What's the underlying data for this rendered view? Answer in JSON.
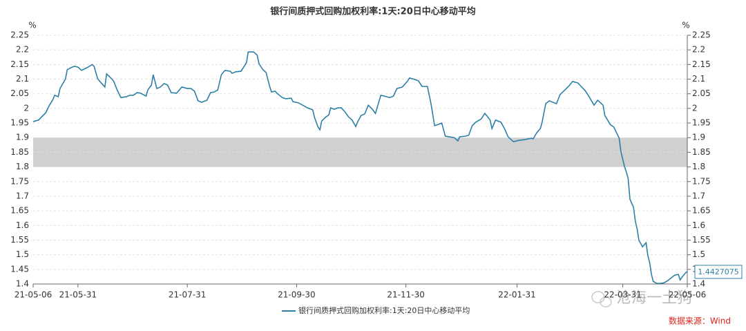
{
  "chart_data": {
    "type": "line",
    "title": "银行间质押式回购加权利率:1天:20日中心移动平均",
    "ylabel": "%",
    "y2label": "%",
    "x": [
      "21-05-06",
      "21-05-09",
      "21-05-13",
      "21-05-15",
      "21-05-17",
      "21-05-18",
      "21-05-20",
      "21-05-21",
      "21-05-24",
      "21-05-25",
      "21-05-27",
      "21-05-29",
      "21-05-31",
      "21-06-02",
      "21-06-05",
      "21-06-08",
      "21-06-09",
      "21-06-11",
      "21-06-13",
      "21-06-15",
      "21-06-16",
      "21-06-19",
      "21-06-20",
      "21-06-22",
      "21-06-24",
      "21-06-27",
      "21-06-29",
      "21-07-01",
      "21-07-03",
      "21-07-05",
      "21-07-08",
      "21-07-09",
      "21-07-11",
      "21-07-12",
      "21-07-14",
      "21-07-16",
      "21-07-18",
      "21-07-20",
      "21-07-22",
      "21-07-25",
      "21-07-28",
      "21-07-31",
      "21-08-02",
      "21-08-04",
      "21-08-06",
      "21-08-08",
      "21-08-11",
      "21-08-13",
      "21-08-15",
      "21-08-17",
      "21-08-19",
      "21-08-21",
      "21-08-24",
      "21-08-25",
      "21-08-27",
      "21-08-30",
      "21-09-02",
      "21-09-03",
      "21-09-06",
      "21-09-08",
      "21-09-09",
      "21-09-11",
      "21-09-13",
      "21-09-15",
      "21-09-16",
      "21-09-18",
      "21-09-19",
      "21-09-22",
      "21-09-24",
      "21-09-27",
      "21-09-28",
      "21-10-01",
      "21-10-04",
      "21-10-06",
      "21-10-09",
      "21-10-10",
      "21-10-12",
      "21-10-13",
      "21-10-14",
      "21-10-16",
      "21-10-18",
      "21-10-19",
      "21-10-21",
      "21-10-23",
      "21-10-25",
      "21-10-27",
      "21-10-29",
      "21-10-31",
      "21-11-02",
      "21-11-03",
      "21-11-05",
      "21-11-07",
      "21-11-09",
      "21-11-11",
      "21-11-13",
      "21-11-16",
      "21-11-18",
      "21-11-21",
      "21-11-23",
      "21-11-25",
      "21-11-28",
      "21-12-01",
      "21-12-02",
      "21-12-05",
      "21-12-07",
      "21-12-09",
      "21-12-12",
      "21-12-14",
      "21-12-16",
      "21-12-18",
      "21-12-20",
      "21-12-22",
      "21-12-24",
      "21-12-27",
      "21-12-29",
      "21-12-30",
      "22-01-02",
      "22-01-04",
      "22-01-06",
      "22-01-08",
      "22-01-11",
      "22-01-13",
      "22-01-14",
      "22-01-16",
      "22-01-17",
      "22-01-19",
      "22-01-22",
      "22-01-24",
      "22-01-26",
      "22-01-29",
      "22-02-01",
      "22-02-04",
      "22-02-08",
      "22-02-09",
      "22-02-11",
      "22-02-13",
      "22-02-14",
      "22-02-16",
      "22-02-18",
      "22-02-20",
      "22-02-22",
      "22-02-24",
      "22-02-26",
      "22-03-01",
      "22-03-03",
      "22-03-06",
      "22-03-07",
      "22-03-10",
      "22-03-12",
      "22-03-15",
      "22-03-17",
      "22-03-20",
      "22-03-21",
      "22-03-24",
      "22-03-26",
      "22-03-29",
      "22-03-30",
      "22-04-01",
      "22-04-02",
      "22-04-03",
      "22-04-04",
      "22-04-06",
      "22-04-07",
      "22-04-08",
      "22-04-09",
      "22-04-10",
      "22-04-11",
      "22-04-13",
      "22-04-14",
      "22-04-15",
      "22-04-16",
      "22-04-17",
      "22-04-19",
      "22-04-21",
      "22-04-23",
      "22-04-25",
      "22-04-27",
      "22-04-29",
      "22-05-01",
      "22-05-02",
      "22-05-03",
      "22-05-05",
      "22-05-06"
    ],
    "series": [
      {
        "name": "银行间质押式回购加权利率:1天:20日中心移动平均",
        "color": "#2b7fa6",
        "values": [
          1.955,
          1.96,
          1.985,
          2.01,
          2.03,
          2.045,
          2.04,
          2.068,
          2.1,
          2.132,
          2.139,
          2.144,
          2.141,
          2.13,
          2.139,
          2.15,
          2.144,
          2.101,
          2.087,
          2.073,
          2.118,
          2.1,
          2.092,
          2.061,
          2.037,
          2.04,
          2.045,
          2.045,
          2.054,
          2.052,
          2.042,
          2.063,
          2.08,
          2.115,
          2.068,
          2.073,
          2.085,
          2.08,
          2.054,
          2.052,
          2.073,
          2.068,
          2.068,
          2.059,
          2.026,
          2.021,
          2.028,
          2.054,
          2.056,
          2.063,
          2.115,
          2.13,
          2.127,
          2.12,
          2.125,
          2.127,
          2.156,
          2.193,
          2.193,
          2.182,
          2.153,
          2.134,
          2.122,
          2.075,
          2.056,
          2.059,
          2.052,
          2.037,
          2.033,
          2.035,
          2.023,
          2.019,
          2.009,
          2.002,
          1.995,
          1.969,
          1.936,
          1.927,
          1.957,
          1.969,
          1.978,
          2.002,
          1.997,
          2.002,
          2.002,
          1.988,
          1.971,
          1.96,
          1.938,
          1.953,
          1.976,
          1.981,
          2.011,
          1.999,
          1.983,
          2.045,
          2.042,
          2.037,
          2.042,
          2.068,
          2.073,
          2.094,
          2.104,
          2.099,
          2.094,
          2.075,
          2.075,
          2.016,
          1.941,
          1.945,
          1.95,
          1.905,
          1.903,
          1.9,
          1.889,
          1.903,
          1.905,
          1.908,
          1.941,
          1.953,
          1.964,
          1.983,
          1.976,
          1.96,
          1.931,
          1.96,
          1.953,
          1.931,
          1.903,
          1.886,
          1.891,
          1.893,
          1.898,
          1.896,
          1.917,
          1.931,
          1.953,
          2.016,
          2.026,
          2.021,
          2.016,
          2.047,
          2.059,
          2.077,
          2.092,
          2.087,
          2.08,
          2.061,
          2.042,
          2.011,
          2.028,
          2.011,
          1.976,
          1.945,
          1.936,
          1.898,
          1.851,
          1.801,
          1.782,
          1.761,
          1.69,
          1.662,
          1.615,
          1.589,
          1.549,
          1.539,
          1.527,
          1.541,
          1.497,
          1.473,
          1.433,
          1.409,
          1.402,
          1.402,
          1.404,
          1.411,
          1.421,
          1.43,
          1.433,
          1.414,
          1.423,
          1.438,
          1.4427075
        ]
      }
    ],
    "xlim": [
      "21-05-06",
      "22-05-06"
    ],
    "xticks": [
      "21-05-06",
      "21-05-31",
      "21-07-31",
      "21-09-30",
      "21-11-30",
      "22-01-31",
      "22-03-31",
      "22-05-06"
    ],
    "ylim": [
      1.4,
      2.25
    ],
    "yticks": [
      1.4,
      1.45,
      1.5,
      1.55,
      1.6,
      1.65,
      1.7,
      1.75,
      1.8,
      1.85,
      1.9,
      1.95,
      2,
      2.05,
      2.1,
      2.15,
      2.2,
      2.25
    ],
    "y2lim": [
      1.4,
      2.25
    ],
    "y2ticks": [
      1.4,
      1.45,
      1.5,
      1.55,
      1.6,
      1.65,
      1.7,
      1.75,
      1.8,
      1.85,
      1.9,
      1.95,
      2,
      2.05,
      2.1,
      2.15,
      2.2,
      2.25
    ],
    "shaded_range": [
      1.8,
      1.9
    ],
    "shaded_color": "#d0d0d0",
    "grid": true,
    "end_label": true,
    "legend": "bottom",
    "watermark": "沧海一土狗",
    "source": "数据来源：Wind"
  }
}
